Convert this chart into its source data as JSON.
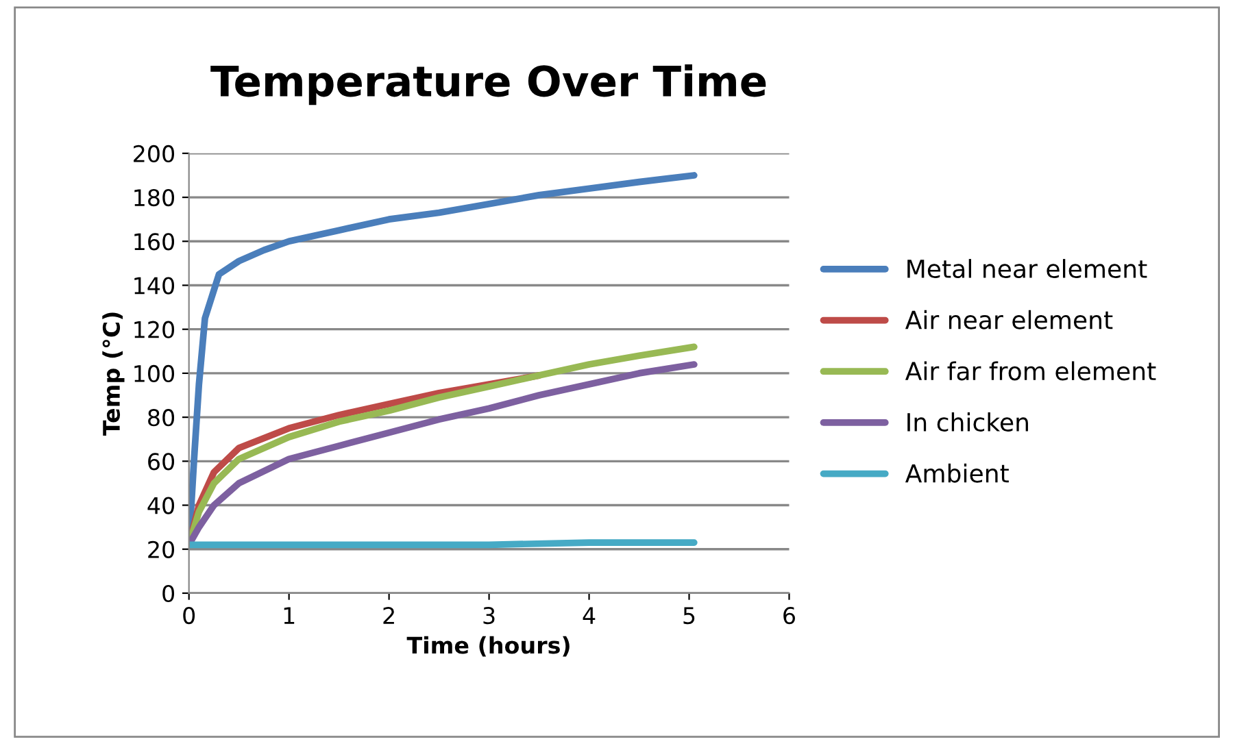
{
  "chart_data": {
    "type": "line",
    "title": "Temperature Over Time",
    "xlabel": "Time (hours)",
    "ylabel": "Temp (°C)",
    "xlim": [
      0,
      6
    ],
    "xticks": [
      0,
      1,
      2,
      3,
      4,
      5,
      6
    ],
    "ylim": [
      0,
      200
    ],
    "yticks": [
      0,
      20,
      40,
      60,
      80,
      100,
      120,
      140,
      160,
      180,
      200
    ],
    "grid": "y",
    "legend": "right",
    "line_style": "solid",
    "marker": "none",
    "series": [
      {
        "name": "Metal near element",
        "color": "#4a7ebb",
        "x": [
          0,
          0.05,
          0.1,
          0.16,
          0.3,
          0.5,
          0.75,
          1,
          1.5,
          2,
          2.5,
          3,
          3.5,
          4,
          4.5,
          5.05
        ],
        "values": [
          22,
          60,
          95,
          125,
          145,
          151,
          156,
          160,
          165,
          170,
          173,
          177,
          181,
          184,
          187,
          190
        ]
      },
      {
        "name": "Air near element",
        "color": "#be4b48",
        "x": [
          0,
          0.1,
          0.25,
          0.5,
          1,
          1.5,
          2,
          2.5,
          3,
          3.5
        ],
        "values": [
          22,
          40,
          55,
          66,
          75,
          81,
          86,
          91,
          95,
          99
        ]
      },
      {
        "name": "Air far from element",
        "color": "#98b954",
        "x": [
          0,
          0.1,
          0.25,
          0.5,
          1,
          1.5,
          2,
          2.5,
          3,
          3.5,
          4,
          4.5,
          5.05
        ],
        "values": [
          22,
          37,
          50,
          61,
          71,
          78,
          83,
          89,
          94,
          99,
          104,
          108,
          112
        ]
      },
      {
        "name": "In chicken",
        "color": "#7d60a0",
        "x": [
          0,
          0.1,
          0.25,
          0.5,
          1,
          1.5,
          2,
          2.5,
          3,
          3.5,
          4,
          4.5,
          5.05
        ],
        "values": [
          22,
          30,
          40,
          50,
          61,
          67,
          73,
          79,
          84,
          90,
          95,
          100,
          104
        ]
      },
      {
        "name": "Ambient",
        "color": "#46aac5",
        "x": [
          0,
          1,
          2,
          3,
          4,
          5.05
        ],
        "values": [
          22,
          22,
          22,
          22,
          23,
          23
        ]
      }
    ]
  }
}
